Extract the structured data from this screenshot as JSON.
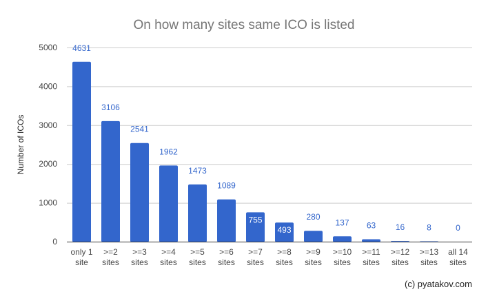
{
  "chart_data": {
    "type": "bar",
    "title": "On how many sites same ICO is listed",
    "xlabel": "",
    "ylabel": "Number of ICOs",
    "ylim": [
      0,
      5000
    ],
    "yticks": [
      0,
      1000,
      2000,
      3000,
      4000,
      5000
    ],
    "grid": true,
    "legend": "none",
    "bar_color": "#3366cc",
    "categories": [
      [
        "only 1",
        "site"
      ],
      [
        ">=2",
        "sites"
      ],
      [
        ">=3",
        "sites"
      ],
      [
        ">=4",
        "sites"
      ],
      [
        ">=5",
        "sites"
      ],
      [
        ">=6",
        "sites"
      ],
      [
        ">=7",
        "sites"
      ],
      [
        ">=8",
        "sites"
      ],
      [
        ">=9",
        "sites"
      ],
      [
        ">=10",
        "sites"
      ],
      [
        ">=11",
        "sites"
      ],
      [
        ">=12",
        "sites"
      ],
      [
        ">=13",
        "sites"
      ],
      [
        "all 14",
        "sites"
      ]
    ],
    "values": [
      4631,
      3106,
      2541,
      1962,
      1473,
      1089,
      755,
      493,
      280,
      137,
      63,
      16,
      8,
      0
    ],
    "label_inside": [
      false,
      false,
      false,
      false,
      false,
      false,
      true,
      true,
      false,
      false,
      false,
      false,
      false,
      false
    ]
  },
  "credit": "(c) pyatakov.com"
}
